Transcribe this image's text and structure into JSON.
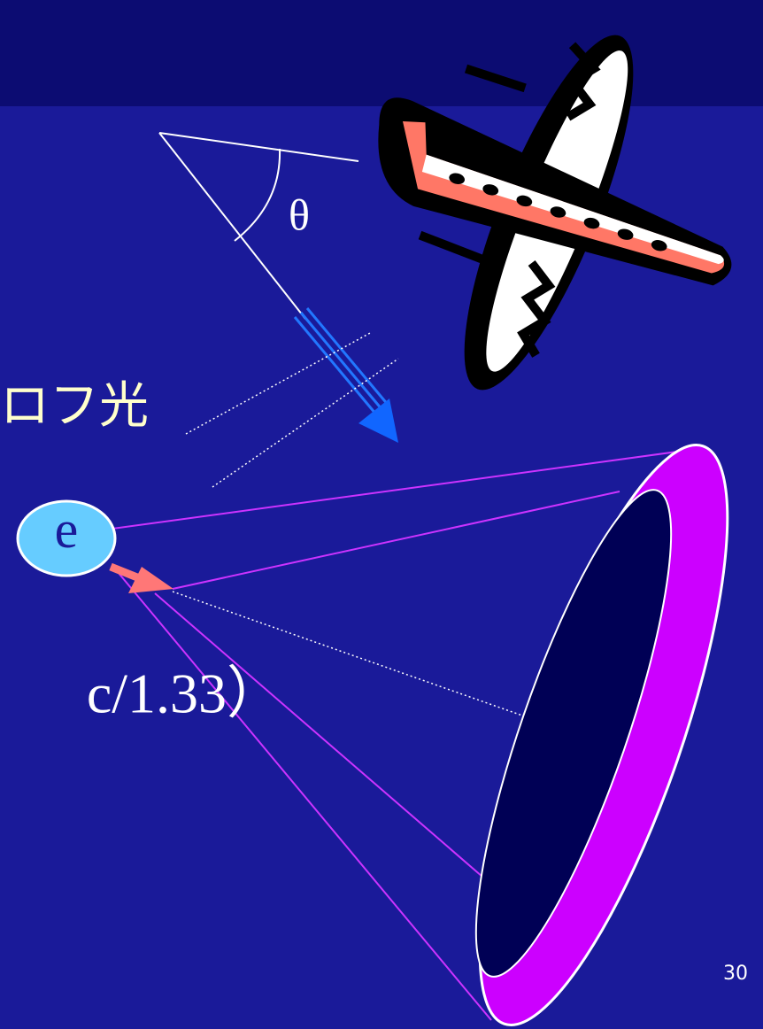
{
  "slide": {
    "angle_label": "θ",
    "partial_heading": "ロフ光",
    "particle_label": "e",
    "partial_formula": "c/1.33）",
    "page_number": "30"
  }
}
